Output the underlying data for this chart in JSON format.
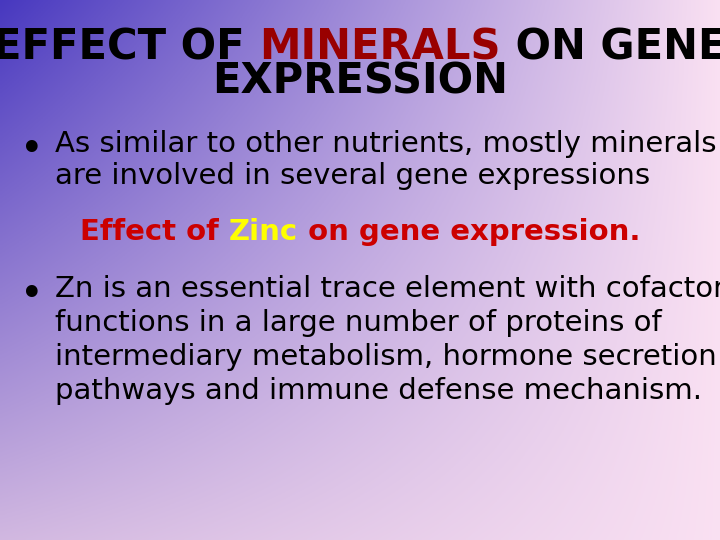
{
  "bg_corners": {
    "tl": [
      0.28,
      0.22,
      0.75
    ],
    "tr": [
      0.98,
      0.88,
      0.95
    ],
    "bl": [
      0.82,
      0.72,
      0.88
    ],
    "br": [
      0.98,
      0.88,
      0.95
    ]
  },
  "title_line1_parts": [
    {
      "text": "EFFECT OF ",
      "color": "#000000"
    },
    {
      "text": "MINERALS",
      "color": "#990000"
    },
    {
      "text": " ON GENE",
      "color": "#000000"
    }
  ],
  "title_line2": {
    "text": "EXPRESSION",
    "color": "#000000"
  },
  "title_fontsize": 30,
  "title_fontweight": "bold",
  "bullet1_line1": "As similar to other nutrients, mostly minerals",
  "bullet1_line2": "are involved in several gene expressions",
  "bullet_color": "#000000",
  "bullet_fontsize": 21,
  "subheading_parts": [
    {
      "text": "Effect of ",
      "color": "#cc0000"
    },
    {
      "text": "Zinc",
      "color": "#ffff00"
    },
    {
      "text": " on gene expression.",
      "color": "#cc0000"
    }
  ],
  "subheading_fontsize": 21,
  "bullet2_lines": [
    "Zn is an essential trace element with cofactor",
    "functions in a large number of proteins of",
    "intermediary metabolism, hormone secretion",
    "pathways and immune defense mechanism."
  ],
  "bullet2_color": "#000000",
  "bullet2_fontsize": 21
}
